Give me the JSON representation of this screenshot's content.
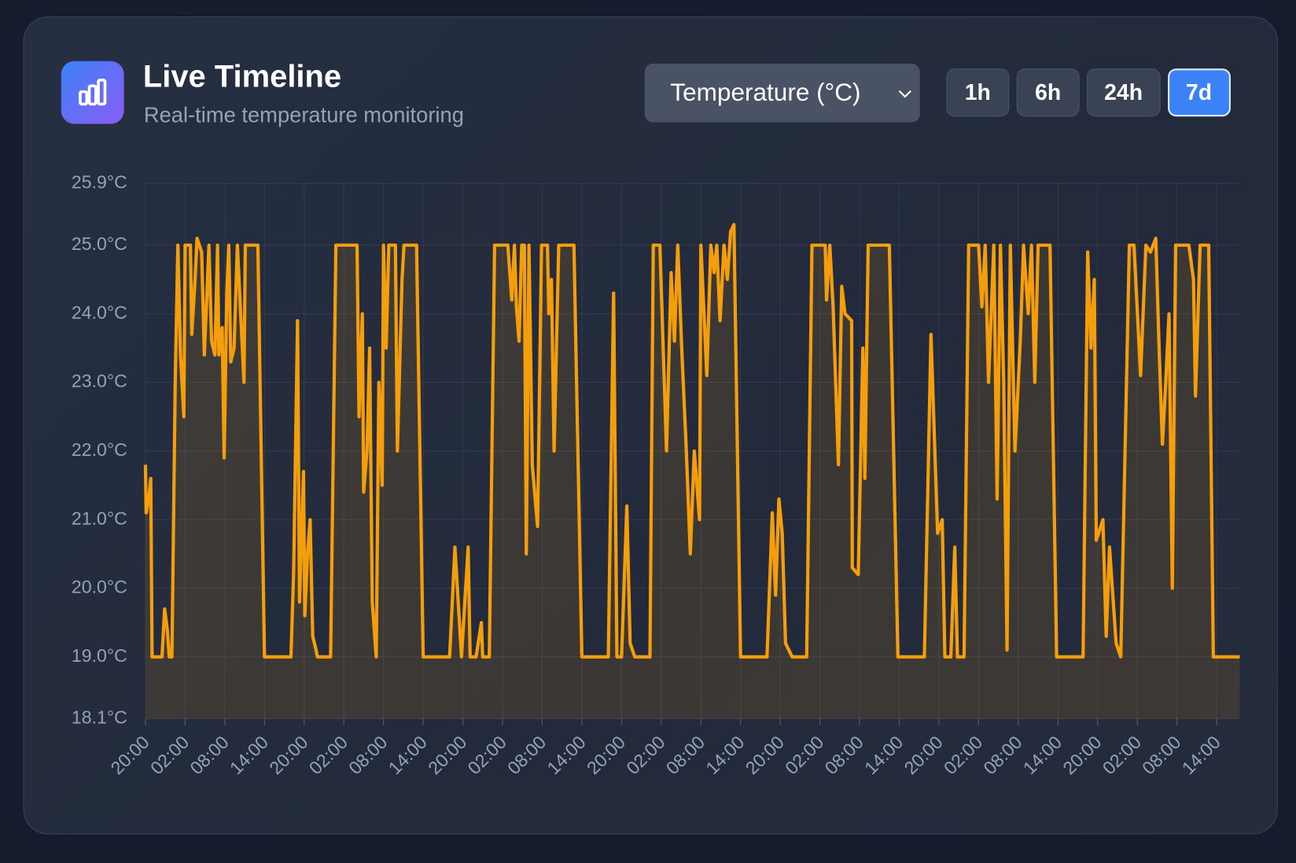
{
  "header": {
    "title": "Live Timeline",
    "subtitle": "Real-time temperature monitoring"
  },
  "controls": {
    "metric": "Temperature (°C)",
    "ranges": [
      {
        "label": "1h"
      },
      {
        "label": "6h"
      },
      {
        "label": "24h"
      },
      {
        "label": "7d",
        "active": true
      }
    ]
  },
  "chart_data": {
    "type": "line",
    "color": "#f59e0b",
    "area": true,
    "grid": true,
    "xlim": [
      0,
      165.5
    ],
    "ylim": [
      18.1,
      25.9
    ],
    "yticks": [
      {
        "value": 25.9,
        "label": "25.9°C"
      },
      {
        "value": 25.0,
        "label": "25.0°C"
      },
      {
        "value": 24.0,
        "label": "24.0°C"
      },
      {
        "value": 23.0,
        "label": "23.0°C"
      },
      {
        "value": 22.0,
        "label": "22.0°C"
      },
      {
        "value": 21.0,
        "label": "21.0°C"
      },
      {
        "value": 20.0,
        "label": "20.0°C"
      },
      {
        "value": 19.0,
        "label": "19.0°C"
      },
      {
        "value": 18.1,
        "label": "18.1°C"
      }
    ],
    "xticks": [
      {
        "value": 0,
        "label": "20:00"
      },
      {
        "value": 6,
        "label": "02:00"
      },
      {
        "value": 12,
        "label": "08:00"
      },
      {
        "value": 18,
        "label": "14:00"
      },
      {
        "value": 24,
        "label": "20:00"
      },
      {
        "value": 30,
        "label": "02:00"
      },
      {
        "value": 36,
        "label": "08:00"
      },
      {
        "value": 42,
        "label": "14:00"
      },
      {
        "value": 48,
        "label": "20:00"
      },
      {
        "value": 54,
        "label": "02:00"
      },
      {
        "value": 60,
        "label": "08:00"
      },
      {
        "value": 66,
        "label": "14:00"
      },
      {
        "value": 72,
        "label": "20:00"
      },
      {
        "value": 78,
        "label": "02:00"
      },
      {
        "value": 84,
        "label": "08:00"
      },
      {
        "value": 90,
        "label": "14:00"
      },
      {
        "value": 96,
        "label": "20:00"
      },
      {
        "value": 102,
        "label": "02:00"
      },
      {
        "value": 108,
        "label": "08:00"
      },
      {
        "value": 114,
        "label": "14:00"
      },
      {
        "value": 120,
        "label": "20:00"
      },
      {
        "value": 126,
        "label": "02:00"
      },
      {
        "value": 132,
        "label": "08:00"
      },
      {
        "value": 138,
        "label": "14:00"
      },
      {
        "value": 144,
        "label": "20:00"
      },
      {
        "value": 150,
        "label": "02:00"
      },
      {
        "value": 156,
        "label": "08:00"
      },
      {
        "value": 162,
        "label": "14:00"
      }
    ],
    "x": [
      0,
      0.1,
      0.5,
      0.8,
      1,
      1.8,
      2.5,
      2.9,
      3.3,
      3.6,
      4,
      4.5,
      4.9,
      5.3,
      5.8,
      6,
      6.8,
      7,
      7.5,
      7.8,
      8.5,
      8.9,
      9.3,
      9.6,
      10,
      10.5,
      10.9,
      11.1,
      11.6,
      11.9,
      12.3,
      12.6,
      12.9,
      13.4,
      13.9,
      14.3,
      14.9,
      15.1,
      17,
      18,
      22,
      22.4,
      23,
      23.3,
      23.9,
      24.1,
      24.5,
      24.9,
      25.3,
      25.8,
      26,
      28,
      28.8,
      32,
      32.3,
      32.8,
      33,
      33.5,
      33.9,
      34.3,
      34.9,
      35.3,
      35.8,
      36,
      36.4,
      36.8,
      37.8,
      38.1,
      38.8,
      39.1,
      41,
      42,
      46,
      46.8,
      47.8,
      48.8,
      49.1,
      50,
      50.8,
      51,
      52,
      52.8,
      54.8,
      55.4,
      55.8,
      56.1,
      56.5,
      56.9,
      57.3,
      57.6,
      58,
      58.5,
      59.3,
      59.9,
      60.8,
      61,
      61.4,
      61.8,
      62.5,
      64.8,
      66,
      70,
      70.8,
      71.3,
      72,
      72.8,
      73.3,
      74,
      76.3,
      76.8,
      77.8,
      78.8,
      79.5,
      80,
      80.5,
      81.1,
      81.8,
      82.4,
      83,
      83.8,
      84,
      84.9,
      85.5,
      86,
      86.4,
      86.9,
      87.5,
      88,
      88.5,
      89,
      90,
      94,
      94.8,
      95.3,
      95.8,
      96.3,
      96.8,
      97.8,
      100,
      100.8,
      102.8,
      103,
      103.5,
      104,
      104.8,
      105.3,
      105.8,
      106.8,
      106.9,
      107.8,
      108.5,
      108.8,
      109.3,
      112.5,
      113.8,
      117.8,
      118.8,
      119.8,
      120.5,
      120.9,
      121.8,
      122.4,
      122.8,
      123.8,
      124.5,
      126,
      126.5,
      127,
      127.5,
      128.3,
      128.8,
      129.3,
      129.8,
      130.3,
      130.8,
      131.5,
      132.3,
      132.8,
      133.5,
      134,
      134.5,
      135,
      136.8,
      137.8,
      141.8,
      142.5,
      143,
      143.5,
      143.8,
      144.8,
      145.3,
      145.8,
      146.8,
      147.5,
      148.8,
      149.5,
      150.5,
      151.3,
      152,
      152.8,
      153.3,
      153.8,
      154.3,
      154.8,
      155.3,
      155.8,
      157.8,
      158.5,
      158.8,
      159.5,
      160.8,
      161.5,
      165.5
    ],
    "values": [
      21.8,
      21.1,
      21.3,
      21.6,
      19.0,
      19.0,
      19.0,
      19.7,
      19.4,
      19.0,
      19.0,
      23.0,
      25.0,
      23.4,
      22.5,
      25.0,
      25.0,
      23.7,
      24.5,
      25.1,
      24.9,
      23.4,
      24.3,
      25.0,
      23.6,
      23.4,
      25.0,
      23.4,
      23.8,
      21.9,
      24.3,
      25.0,
      23.3,
      23.5,
      25.0,
      24.2,
      23.0,
      25.0,
      25.0,
      19.0,
      19.0,
      20.2,
      23.9,
      19.8,
      21.7,
      19.6,
      20.5,
      21.0,
      19.3,
      19.1,
      19.0,
      19.0,
      25.0,
      25.0,
      22.5,
      24.0,
      21.4,
      22.0,
      23.5,
      19.8,
      19.0,
      23.0,
      21.5,
      25.0,
      23.5,
      25.0,
      25.0,
      22.0,
      24.5,
      25.0,
      25.0,
      19.0,
      19.0,
      20.6,
      19.0,
      20.6,
      19.0,
      19.0,
      19.5,
      19.0,
      19.0,
      25.0,
      25.0,
      24.2,
      25.0,
      24.1,
      23.6,
      25.0,
      25.0,
      20.5,
      25.0,
      21.8,
      20.9,
      25.0,
      25.0,
      24.0,
      24.5,
      22.0,
      25.0,
      25.0,
      19.0,
      19.0,
      24.3,
      19.0,
      19.0,
      21.2,
      19.2,
      19.0,
      19.0,
      25.0,
      25.0,
      22.0,
      24.6,
      23.6,
      25.0,
      23.5,
      22.0,
      20.5,
      22.0,
      21.0,
      25.0,
      23.1,
      25.0,
      24.6,
      25.0,
      23.9,
      25.0,
      24.5,
      25.2,
      25.3,
      19.0,
      19.0,
      21.1,
      19.9,
      21.3,
      20.8,
      19.2,
      19.0,
      19.0,
      25.0,
      25.0,
      24.2,
      25.0,
      24.1,
      21.8,
      24.4,
      24.0,
      23.9,
      20.3,
      20.2,
      23.5,
      21.6,
      25.0,
      25.0,
      19.0,
      19.0,
      23.7,
      20.8,
      21.0,
      19.0,
      19.0,
      20.6,
      19.0,
      19.0,
      25.0,
      25.0,
      24.1,
      25.0,
      23.0,
      25.0,
      21.3,
      25.0,
      23.0,
      19.1,
      25.0,
      22.0,
      23.6,
      25.0,
      24.0,
      25.0,
      23.0,
      25.0,
      25.0,
      19.0,
      19.0,
      24.9,
      23.5,
      24.5,
      20.7,
      21.0,
      19.3,
      20.6,
      19.2,
      19.0,
      25.0,
      25.0,
      23.1,
      25.0,
      24.9,
      25.1,
      23.5,
      22.1,
      23.0,
      24.0,
      20.0,
      25.0,
      25.0,
      24.5,
      22.8,
      25.0,
      25.0,
      19.0,
      19.0
    ]
  }
}
